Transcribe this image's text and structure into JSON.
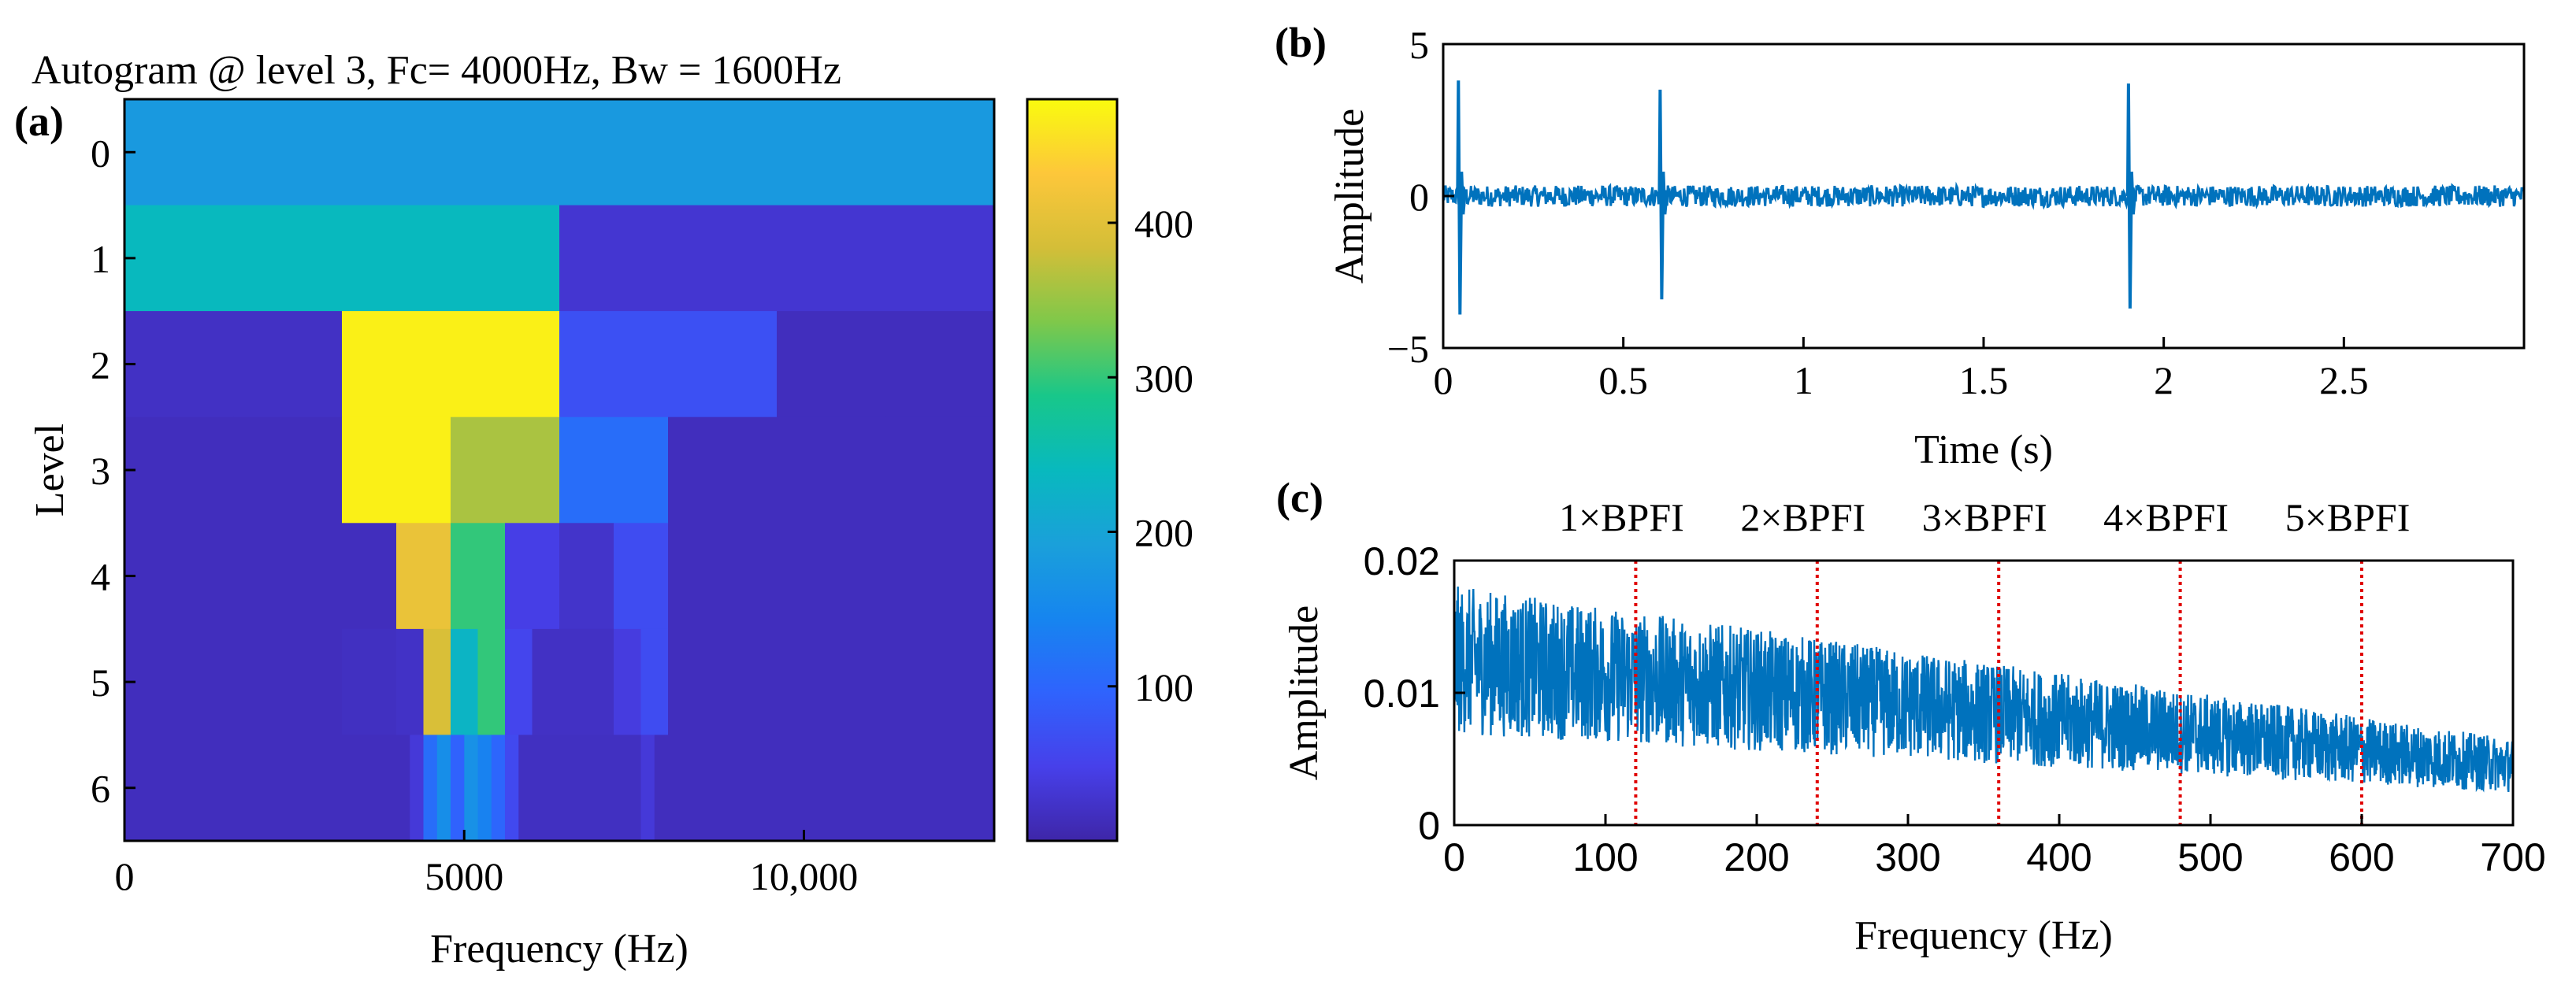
{
  "chart_data": [
    {
      "panel": "(a)",
      "type": "heatmap",
      "title": "Autogram  @ level 3, Fc= 4000Hz, Bw = 1600Hz",
      "xlabel": "Frequency (Hz)",
      "ylabel": "Level",
      "xlim": [
        0,
        12800
      ],
      "x_ticks": [
        0,
        5000,
        10000
      ],
      "x_tick_labels": [
        "0",
        "5000",
        "10,000"
      ],
      "y_tick_labels": [
        "0",
        "1",
        "2",
        "3",
        "4",
        "5",
        "6"
      ],
      "colorbar": {
        "min": 0,
        "max": 480,
        "ticks": [
          100,
          200,
          300,
          400
        ],
        "tick_labels": [
          "100",
          "200",
          "300",
          "400"
        ]
      },
      "levels": [
        {
          "level": 0,
          "cells": [
            {
              "f0": 0,
              "f1": 12800,
              "v": 180
            }
          ]
        },
        {
          "level": 1,
          "cells": [
            {
              "f0": 0,
              "f1": 6400,
              "v": 240
            },
            {
              "f0": 6400,
              "f1": 12800,
              "v": 30
            }
          ]
        },
        {
          "level": 2,
          "cells": [
            {
              "f0": 0,
              "f1": 3200,
              "v": 20
            },
            {
              "f0": 3200,
              "f1": 6400,
              "v": 470
            },
            {
              "f0": 6400,
              "f1": 9600,
              "v": 70
            },
            {
              "f0": 9600,
              "f1": 12800,
              "v": 15
            }
          ]
        },
        {
          "level": 3,
          "cells": [
            {
              "f0": 0,
              "f1": 1600,
              "v": 15
            },
            {
              "f0": 1600,
              "f1": 3200,
              "v": 15
            },
            {
              "f0": 3200,
              "f1": 4800,
              "v": 470
            },
            {
              "f0": 4800,
              "f1": 6400,
              "v": 360
            },
            {
              "f0": 6400,
              "f1": 8000,
              "v": 110
            },
            {
              "f0": 8000,
              "f1": 9600,
              "v": 15
            },
            {
              "f0": 9600,
              "f1": 11200,
              "v": 15
            },
            {
              "f0": 11200,
              "f1": 12800,
              "v": 15
            }
          ]
        },
        {
          "level": 4,
          "cells": [
            {
              "f0": 0,
              "f1": 4000,
              "v": 15
            },
            {
              "f0": 4000,
              "f1": 4800,
              "v": 410
            },
            {
              "f0": 4800,
              "f1": 5600,
              "v": 300
            },
            {
              "f0": 5600,
              "f1": 6400,
              "v": 45
            },
            {
              "f0": 6400,
              "f1": 7200,
              "v": 25
            },
            {
              "f0": 7200,
              "f1": 8000,
              "v": 65
            },
            {
              "f0": 8000,
              "f1": 12800,
              "v": 15
            }
          ]
        },
        {
          "level": 5,
          "cells": [
            {
              "f0": 0,
              "f1": 3200,
              "v": 15
            },
            {
              "f0": 3200,
              "f1": 4000,
              "v": 18
            },
            {
              "f0": 4000,
              "f1": 4400,
              "v": 22
            },
            {
              "f0": 4400,
              "f1": 4800,
              "v": 390
            },
            {
              "f0": 4800,
              "f1": 5200,
              "v": 230
            },
            {
              "f0": 5200,
              "f1": 5600,
              "v": 300
            },
            {
              "f0": 5600,
              "f1": 6000,
              "v": 55
            },
            {
              "f0": 6000,
              "f1": 7200,
              "v": 20
            },
            {
              "f0": 7200,
              "f1": 7600,
              "v": 40
            },
            {
              "f0": 7600,
              "f1": 8000,
              "v": 65
            },
            {
              "f0": 8000,
              "f1": 12800,
              "v": 15
            }
          ]
        },
        {
          "level": 6,
          "cells": [
            {
              "f0": 0,
              "f1": 4200,
              "v": 15
            },
            {
              "f0": 4200,
              "f1": 4400,
              "v": 35
            },
            {
              "f0": 4400,
              "f1": 4600,
              "v": 110
            },
            {
              "f0": 4600,
              "f1": 4800,
              "v": 160
            },
            {
              "f0": 4800,
              "f1": 5000,
              "v": 95
            },
            {
              "f0": 5000,
              "f1": 5200,
              "v": 165
            },
            {
              "f0": 5200,
              "f1": 5400,
              "v": 140
            },
            {
              "f0": 5400,
              "f1": 5600,
              "v": 100
            },
            {
              "f0": 5600,
              "f1": 5800,
              "v": 60
            },
            {
              "f0": 5800,
              "f1": 7600,
              "v": 18
            },
            {
              "f0": 7600,
              "f1": 7800,
              "v": 35
            },
            {
              "f0": 7800,
              "f1": 12800,
              "v": 15
            }
          ]
        }
      ]
    },
    {
      "panel": "(b)",
      "type": "line",
      "xlabel": "Time (s)",
      "ylabel": "Amplitude",
      "xlim": [
        0,
        3
      ],
      "ylim": [
        -5,
        5
      ],
      "x_ticks": [
        0,
        0.5,
        1,
        1.5,
        2,
        2.5
      ],
      "x_tick_labels": [
        "0",
        "0.5",
        "1",
        "1.5",
        "2",
        "2.5"
      ],
      "y_ticks": [
        -5,
        0,
        5
      ],
      "y_tick_labels": [
        "−5",
        "0",
        "5"
      ],
      "color": "#0072BD",
      "noise_amplitude": 0.35,
      "impulses": [
        {
          "t": 0.04,
          "up": 3.8,
          "down": -3.9
        },
        {
          "t": 0.6,
          "up": 3.5,
          "down": -3.4
        },
        {
          "t": 1.9,
          "up": 3.7,
          "down": -3.7
        }
      ]
    },
    {
      "panel": "(c)",
      "type": "line",
      "xlabel": "Frequency (Hz)",
      "ylabel": "Amplitude",
      "xlim": [
        0,
        700
      ],
      "ylim": [
        0,
        0.02
      ],
      "x_ticks": [
        0,
        100,
        200,
        300,
        400,
        500,
        600,
        700
      ],
      "x_tick_labels": [
        "0",
        "100",
        "200",
        "300",
        "400",
        "500",
        "600",
        "700"
      ],
      "y_ticks": [
        0,
        0.01,
        0.02
      ],
      "y_tick_labels": [
        "0",
        "0.01",
        "0.02"
      ],
      "color": "#0072BD",
      "trend_start": 0.0125,
      "trend_end": 0.0045,
      "fault_lines": [
        {
          "f": 120,
          "label": "1×BPFI"
        },
        {
          "f": 240,
          "label": "2×BPFI"
        },
        {
          "f": 360,
          "label": "3×BPFI"
        },
        {
          "f": 480,
          "label": "4×BPFI"
        },
        {
          "f": 600,
          "label": "5×BPFI"
        }
      ],
      "fault_line_color": "#E00000"
    }
  ]
}
